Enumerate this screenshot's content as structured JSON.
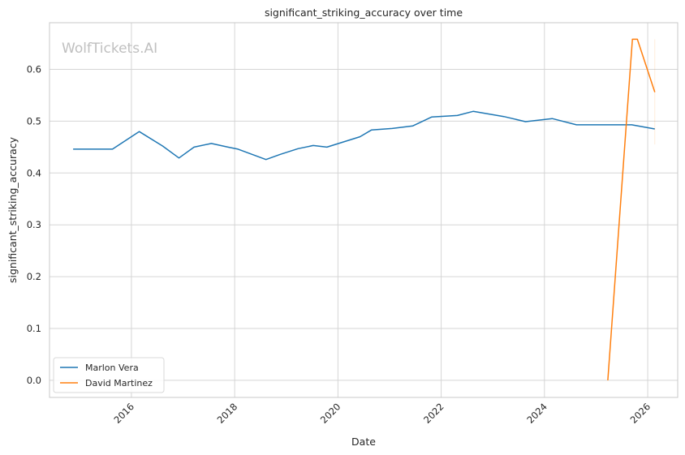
{
  "chart_data": {
    "type": "line",
    "title": "significant_striking_accuracy over time",
    "xlabel": "Date",
    "ylabel": "significant_striking_accuracy",
    "watermark": "WolfTickets.AI",
    "grid": true,
    "legend_position": "bottom-left",
    "x_ticks": [
      "2016",
      "2018",
      "2020",
      "2022",
      "2024",
      "2026"
    ],
    "y_ticks": [
      "0.0",
      "0.1",
      "0.2",
      "0.3",
      "0.4",
      "0.5",
      "0.6"
    ],
    "xlim": [
      "2014-06-01",
      "2026-08-01"
    ],
    "ylim": [
      -0.033,
      0.69
    ],
    "series": [
      {
        "name": "Marlon Vera",
        "color": "#1f77b4",
        "points": [
          [
            "2014-11-15",
            0.446
          ],
          [
            "2015-08-20",
            0.446
          ],
          [
            "2016-02-25",
            0.48
          ],
          [
            "2016-08-10",
            0.452
          ],
          [
            "2016-12-03",
            0.429
          ],
          [
            "2017-03-20",
            0.45
          ],
          [
            "2017-07-20",
            0.457
          ],
          [
            "2017-11-15",
            0.45
          ],
          [
            "2018-01-25",
            0.446
          ],
          [
            "2018-08-10",
            0.426
          ],
          [
            "2018-11-20",
            0.436
          ],
          [
            "2019-03-25",
            0.447
          ],
          [
            "2019-07-10",
            0.453
          ],
          [
            "2019-10-15",
            0.45
          ],
          [
            "2020-06-05",
            0.47
          ],
          [
            "2020-08-25",
            0.483
          ],
          [
            "2021-01-20",
            0.486
          ],
          [
            "2021-06-15",
            0.491
          ],
          [
            "2021-10-25",
            0.508
          ],
          [
            "2022-04-25",
            0.511
          ],
          [
            "2022-08-15",
            0.519
          ],
          [
            "2023-03-20",
            0.509
          ],
          [
            "2023-08-20",
            0.499
          ],
          [
            "2024-02-25",
            0.505
          ],
          [
            "2024-08-15",
            0.493
          ],
          [
            "2025-01-20",
            0.493
          ],
          [
            "2025-09-10",
            0.493
          ],
          [
            "2026-02-20",
            0.485
          ]
        ]
      },
      {
        "name": "David Martinez",
        "color": "#ff7f0e",
        "points": [
          [
            "2025-03-25",
            0.0
          ],
          [
            "2025-09-15",
            0.658
          ],
          [
            "2025-10-20",
            0.658
          ],
          [
            "2026-02-20",
            0.556
          ]
        ]
      }
    ]
  }
}
